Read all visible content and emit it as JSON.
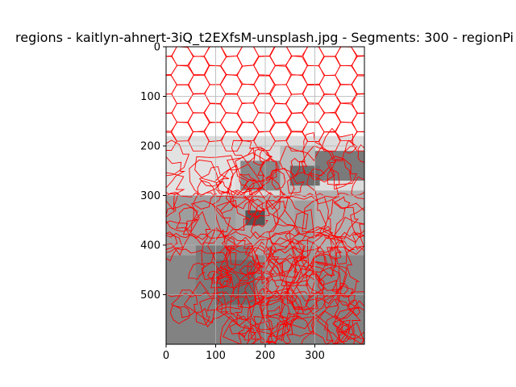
{
  "chart_data": {
    "type": "heatmap",
    "title": "regions - kaitlyn-ahnert-3iQ_t2EXfsM-unsplash.jpg - Segments: 300 - regionPi",
    "xlabel": "",
    "ylabel": "",
    "xlim": [
      0,
      400
    ],
    "ylim": [
      600,
      0
    ],
    "x_ticks": [
      0,
      100,
      200,
      300
    ],
    "y_ticks": [
      0,
      100,
      200,
      300,
      400,
      500
    ],
    "grid": true,
    "boundary_color": "#ff0000",
    "segments": 300,
    "image_width": 400,
    "image_height": 600,
    "intensity_bands": [
      {
        "from_y": 0,
        "to_y": 180,
        "gray": "#ffffff"
      },
      {
        "from_y": 180,
        "to_y": 300,
        "gray": "#dcdcdc"
      },
      {
        "from_y": 300,
        "to_y": 420,
        "gray": "#9e9e9e"
      },
      {
        "from_y": 420,
        "to_y": 600,
        "gray": "#888888"
      }
    ]
  }
}
